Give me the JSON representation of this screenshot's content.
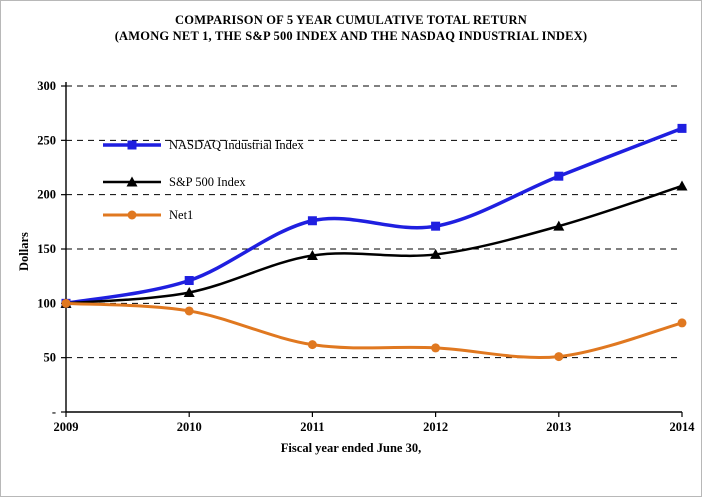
{
  "chart_data": {
    "type": "line",
    "title": "COMPARISON OF 5 YEAR CUMULATIVE TOTAL RETURN",
    "subtitle": "(AMONG NET 1, THE S&P 500 INDEX AND THE NASDAQ INDUSTRIAL INDEX)",
    "xlabel": "Fiscal year ended June 30,",
    "ylabel": "Dollars",
    "categories": [
      "2009",
      "2010",
      "2011",
      "2012",
      "2013",
      "2014"
    ],
    "series": [
      {
        "name": "NASDAQ Industrial Index",
        "color": "#1f1fe0",
        "marker": "square",
        "line_width": 3.5,
        "values": [
          100,
          121,
          176,
          171,
          217,
          261
        ]
      },
      {
        "name": "S&P 500 Index",
        "color": "#000000",
        "marker": "triangle",
        "line_width": 2.5,
        "values": [
          100,
          110,
          144,
          145,
          171,
          208
        ]
      },
      {
        "name": "Net1",
        "color": "#e07820",
        "marker": "circle",
        "line_width": 3,
        "values": [
          100,
          93,
          62,
          59,
          51,
          82
        ]
      }
    ],
    "ylim": [
      0,
      300
    ],
    "yticks": [
      {
        "value": 0,
        "label": "-"
      },
      {
        "value": 50,
        "label": "50"
      },
      {
        "value": 100,
        "label": "100"
      },
      {
        "value": 150,
        "label": "150"
      },
      {
        "value": 200,
        "label": "200"
      },
      {
        "value": 250,
        "label": "250"
      },
      {
        "value": 300,
        "label": "300"
      }
    ],
    "grid": "dashed-horizontal",
    "legend_position": "top-left-inside"
  }
}
